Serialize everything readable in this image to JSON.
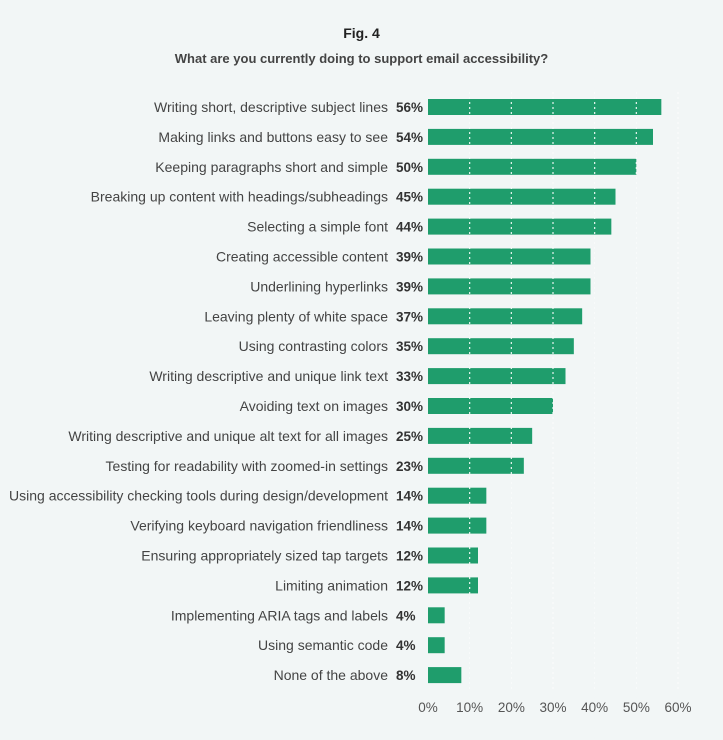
{
  "figure": {
    "label": "Fig. 4",
    "title": "What are you currently doing to support email accessibility?"
  },
  "colors": {
    "bar": "#1f9d6c",
    "grid": "#ffffff",
    "gridline": "#cfd8d8",
    "background": "#f2f6f6"
  },
  "chart_data": {
    "type": "bar",
    "orientation": "horizontal",
    "title": "What are you currently doing to support email accessibility?",
    "categories": [
      "Writing short, descriptive subject lines",
      "Making links and buttons easy to see",
      "Keeping paragraphs short and simple",
      "Breaking up content with headings/subheadings",
      "Selecting a simple font",
      "Creating accessible content",
      "Underlining hyperlinks",
      "Leaving plenty of white space",
      "Using contrasting colors",
      "Writing descriptive and unique link text",
      "Avoiding text on images",
      "Writing descriptive and unique alt text for all images",
      "Testing for readability with zoomed-in settings",
      "Using accessibility checking tools during design/development",
      "Verifying keyboard navigation friendliness",
      "Ensuring appropriately sized tap targets",
      "Limiting animation",
      "Implementing ARIA tags and labels",
      "Using semantic code",
      "None of the above"
    ],
    "values": [
      56,
      54,
      50,
      45,
      44,
      39,
      39,
      37,
      35,
      33,
      30,
      25,
      23,
      14,
      14,
      12,
      12,
      4,
      4,
      8
    ],
    "value_labels": [
      "56%",
      "54%",
      "50%",
      "45%",
      "44%",
      "39%",
      "39%",
      "37%",
      "35%",
      "33%",
      "30%",
      "25%",
      "23%",
      "14%",
      "14%",
      "12%",
      "12%",
      "4%",
      "4%",
      "8%"
    ],
    "xticks": [
      0,
      10,
      20,
      30,
      40,
      50,
      60
    ],
    "xtick_labels": [
      "0%",
      "10%",
      "20%",
      "30%",
      "40%",
      "50%",
      "60%"
    ],
    "xlim": [
      0,
      60
    ],
    "grid": true
  }
}
